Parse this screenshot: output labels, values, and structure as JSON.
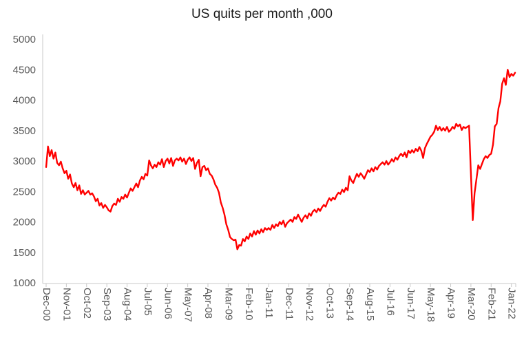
{
  "chart_data": {
    "type": "line",
    "title": "US quits per month ,000",
    "series_name": "US quits per month (thousands)",
    "frequency": "monthly",
    "x_start": "Dec-00",
    "x_end": "Mar-22",
    "tick_interval_months": 11,
    "x_tick_labels": [
      "Dec-00",
      "Nov-01",
      "Oct-02",
      "Sep-03",
      "Aug-04",
      "Jul-05",
      "Jun-06",
      "May-07",
      "Apr-08",
      "Mar-09",
      "Feb-10",
      "Jan-11",
      "Dec-11",
      "Nov-12",
      "Oct-13",
      "Sep-14",
      "Aug-15",
      "Jul-16",
      "Jun-17",
      "May-18",
      "Apr-19",
      "Mar-20",
      "Feb-21",
      "Jan-22"
    ],
    "y_ticks": [
      5000,
      4500,
      4000,
      3500,
      3000,
      2500,
      2000,
      1500,
      1000
    ],
    "ylim": [
      1000,
      5000
    ],
    "grid": false,
    "legend": "none",
    "line_color": "#FF0000",
    "axis_color": "#C9C9C9",
    "label_color": "#595959",
    "values": [
      2900,
      3240,
      3080,
      3180,
      3040,
      3140,
      2970,
      2930,
      2990,
      2880,
      2800,
      2840,
      2710,
      2780,
      2630,
      2570,
      2640,
      2520,
      2600,
      2460,
      2520,
      2450,
      2480,
      2510,
      2450,
      2470,
      2420,
      2340,
      2380,
      2270,
      2310,
      2230,
      2280,
      2240,
      2190,
      2170,
      2260,
      2300,
      2280,
      2380,
      2330,
      2410,
      2380,
      2450,
      2400,
      2480,
      2550,
      2510,
      2570,
      2630,
      2570,
      2680,
      2740,
      2700,
      2790,
      2760,
      3010,
      2930,
      2880,
      2940,
      2900,
      2980,
      2940,
      3030,
      2900,
      3000,
      3040,
      2960,
      3050,
      2920,
      3010,
      3040,
      3010,
      3060,
      2990,
      3040,
      2950,
      3020,
      3060,
      3000,
      3050,
      2870,
      2970,
      3020,
      2750,
      2900,
      2920,
      2850,
      2880,
      2790,
      2760,
      2700,
      2610,
      2560,
      2480,
      2320,
      2230,
      2120,
      1960,
      1870,
      1750,
      1720,
      1700,
      1710,
      1550,
      1620,
      1610,
      1720,
      1680,
      1760,
      1720,
      1810,
      1760,
      1850,
      1790,
      1860,
      1810,
      1880,
      1830,
      1900,
      1870,
      1900,
      1870,
      1950,
      1900,
      1960,
      1930,
      2000,
      1960,
      2020,
      1920,
      1980,
      2010,
      2040,
      2000,
      2080,
      2050,
      2120,
      2060,
      2000,
      2070,
      2110,
      2060,
      2140,
      2100,
      2170,
      2200,
      2160,
      2220,
      2180,
      2240,
      2280,
      2250,
      2330,
      2390,
      2350,
      2400,
      2370,
      2440,
      2480,
      2460,
      2530,
      2490,
      2560,
      2520,
      2750,
      2680,
      2640,
      2720,
      2790,
      2740,
      2800,
      2760,
      2710,
      2780,
      2850,
      2820,
      2880,
      2830,
      2900,
      2860,
      2920,
      2950,
      2980,
      2940,
      3000,
      2940,
      2980,
      3030,
      2990,
      3060,
      3020,
      3080,
      3120,
      3080,
      3140,
      3060,
      3170,
      3130,
      3180,
      3140,
      3200,
      3160,
      3230,
      3170,
      3050,
      3210,
      3280,
      3340,
      3400,
      3430,
      3480,
      3580,
      3510,
      3560,
      3500,
      3540,
      3500,
      3560,
      3480,
      3510,
      3560,
      3530,
      3610,
      3570,
      3600,
      3510,
      3560,
      3540,
      3560,
      3580,
      2790,
      2030,
      2470,
      2700,
      2930,
      2870,
      2950,
      3030,
      3080,
      3050,
      3100,
      3120,
      3270,
      3570,
      3610,
      3870,
      3980,
      4270,
      4360,
      4250,
      4500,
      4380,
      4430,
      4400,
      4450
    ]
  }
}
